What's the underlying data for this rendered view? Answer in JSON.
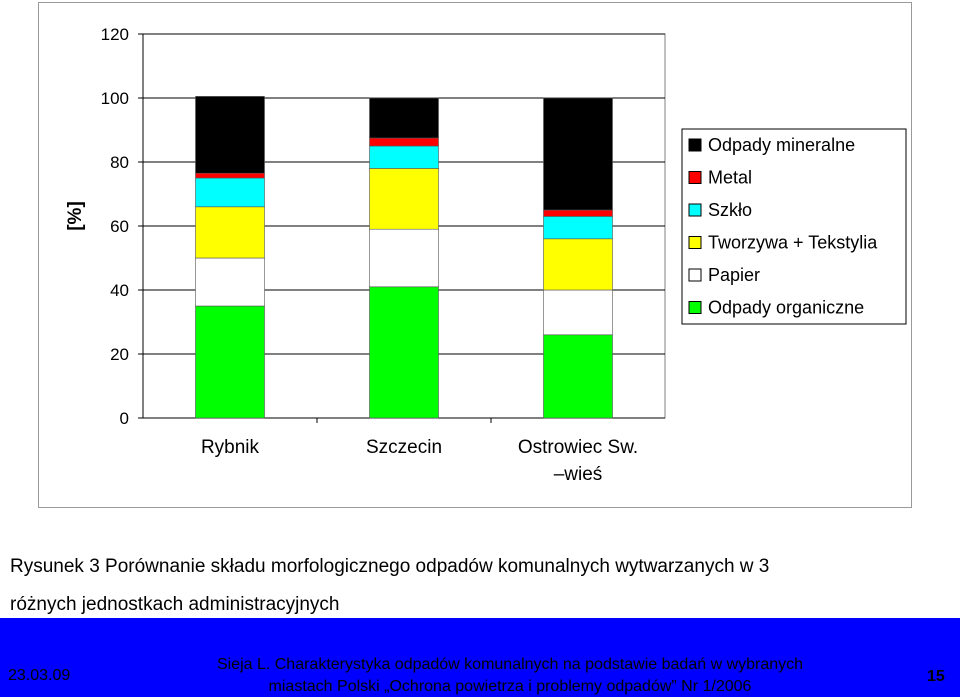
{
  "chart_data": {
    "type": "bar",
    "stacked": true,
    "categories": [
      "Rybnik",
      "Szczecin",
      "Ostrowiec Sw.\n–wieś"
    ],
    "series": [
      {
        "name": "Odpady organiczne",
        "color": "#00ff00",
        "values": [
          35,
          41,
          26
        ]
      },
      {
        "name": "Papier",
        "color": "#ffffff",
        "values": [
          15,
          18,
          14
        ]
      },
      {
        "name": "Tworzywa + Tekstylia",
        "color": "#ffff00",
        "values": [
          16,
          19,
          16
        ]
      },
      {
        "name": "Szkło",
        "color": "#00ffff",
        "values": [
          9,
          7,
          7
        ]
      },
      {
        "name": "Metal",
        "color": "#ff0000",
        "values": [
          1.5,
          2.5,
          2
        ]
      },
      {
        "name": "Odpady mineralne",
        "color": "#000000",
        "values": [
          24,
          12.5,
          35
        ]
      }
    ],
    "legend_order": [
      "Odpady mineralne",
      "Metal",
      "Szkło",
      "Tworzywa + Tekstylia",
      "Papier",
      "Odpady organiczne"
    ],
    "ylabel": "[%]",
    "ylim": [
      0,
      120
    ],
    "yticks": [
      0,
      20,
      40,
      60,
      80,
      100,
      120
    ],
    "grid": true,
    "legend_position": "right"
  },
  "caption": {
    "line1": "Rysunek 3 Porównanie składu morfologicznego odpadów komunalnych wytwarzanych w 3",
    "line2": "różnych jednostkach administracyjnych"
  },
  "footer": {
    "date": "23.03.09",
    "reference_line1": "Sieja L. Charakterystyka odpadów komunalnych na podstawie badań w wybranych",
    "reference_line2": "miastach Polski „Ochrona powietrza i problemy odpadów” Nr 1/2006",
    "page_number": "15",
    "background_color": "#0000ff"
  }
}
